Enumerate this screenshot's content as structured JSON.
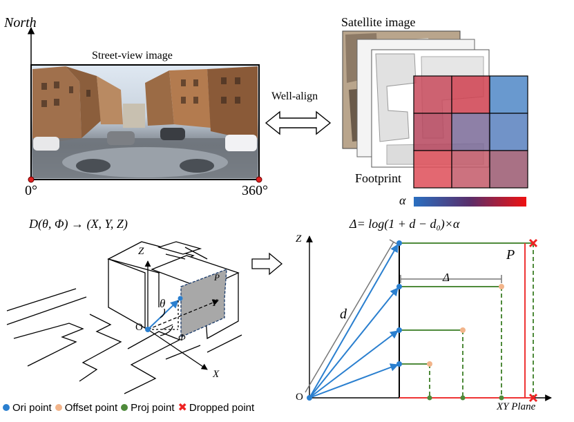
{
  "top_left": {
    "north_label": "North",
    "streetview_label": "Street-view image",
    "zero_label": "0°",
    "full_label": "360°"
  },
  "top_middle": {
    "align_label": "Well-align"
  },
  "top_right": {
    "satellite_label": "Satellite image",
    "footprint_label": "Footprint",
    "alpha_label": "α",
    "grid_colors": [
      [
        "#c84a5c",
        "#cf3f4f",
        "#4f87c7"
      ],
      [
        "#b6455d",
        "#7a6a98",
        "#5880be"
      ],
      [
        "#de4d58",
        "#c35968",
        "#9a5870"
      ]
    ],
    "colorbar": {
      "start": "#2a6fc0",
      "mid": "#5a2e6a",
      "end": "#ee1111"
    }
  },
  "bottom_left": {
    "equation": "D(θ, Φ) → (X, Y, Z)",
    "z_label": "Z",
    "y_label": "Y",
    "x_label": "X",
    "p_label": "P",
    "theta_label": "θ",
    "phi_label": "Φ",
    "o_label": "O"
  },
  "bottom_right": {
    "equation": "Δ= log(1 + d − d₀)×α",
    "z_label": "Z",
    "p_label": "P",
    "delta_label": "Δ",
    "d_label": "d",
    "o_label": "O",
    "xy_label": "XY Plane"
  },
  "legend": {
    "items": [
      {
        "label": "Ori point",
        "color": "#2a7fcf",
        "marker": "dot"
      },
      {
        "label": "Offset point",
        "color": "#f2b48a",
        "marker": "dot"
      },
      {
        "label": "Proj point",
        "color": "#4e8a3a",
        "marker": "dot"
      },
      {
        "label": "Dropped point",
        "color": "#ee2222",
        "marker": "x"
      }
    ]
  }
}
